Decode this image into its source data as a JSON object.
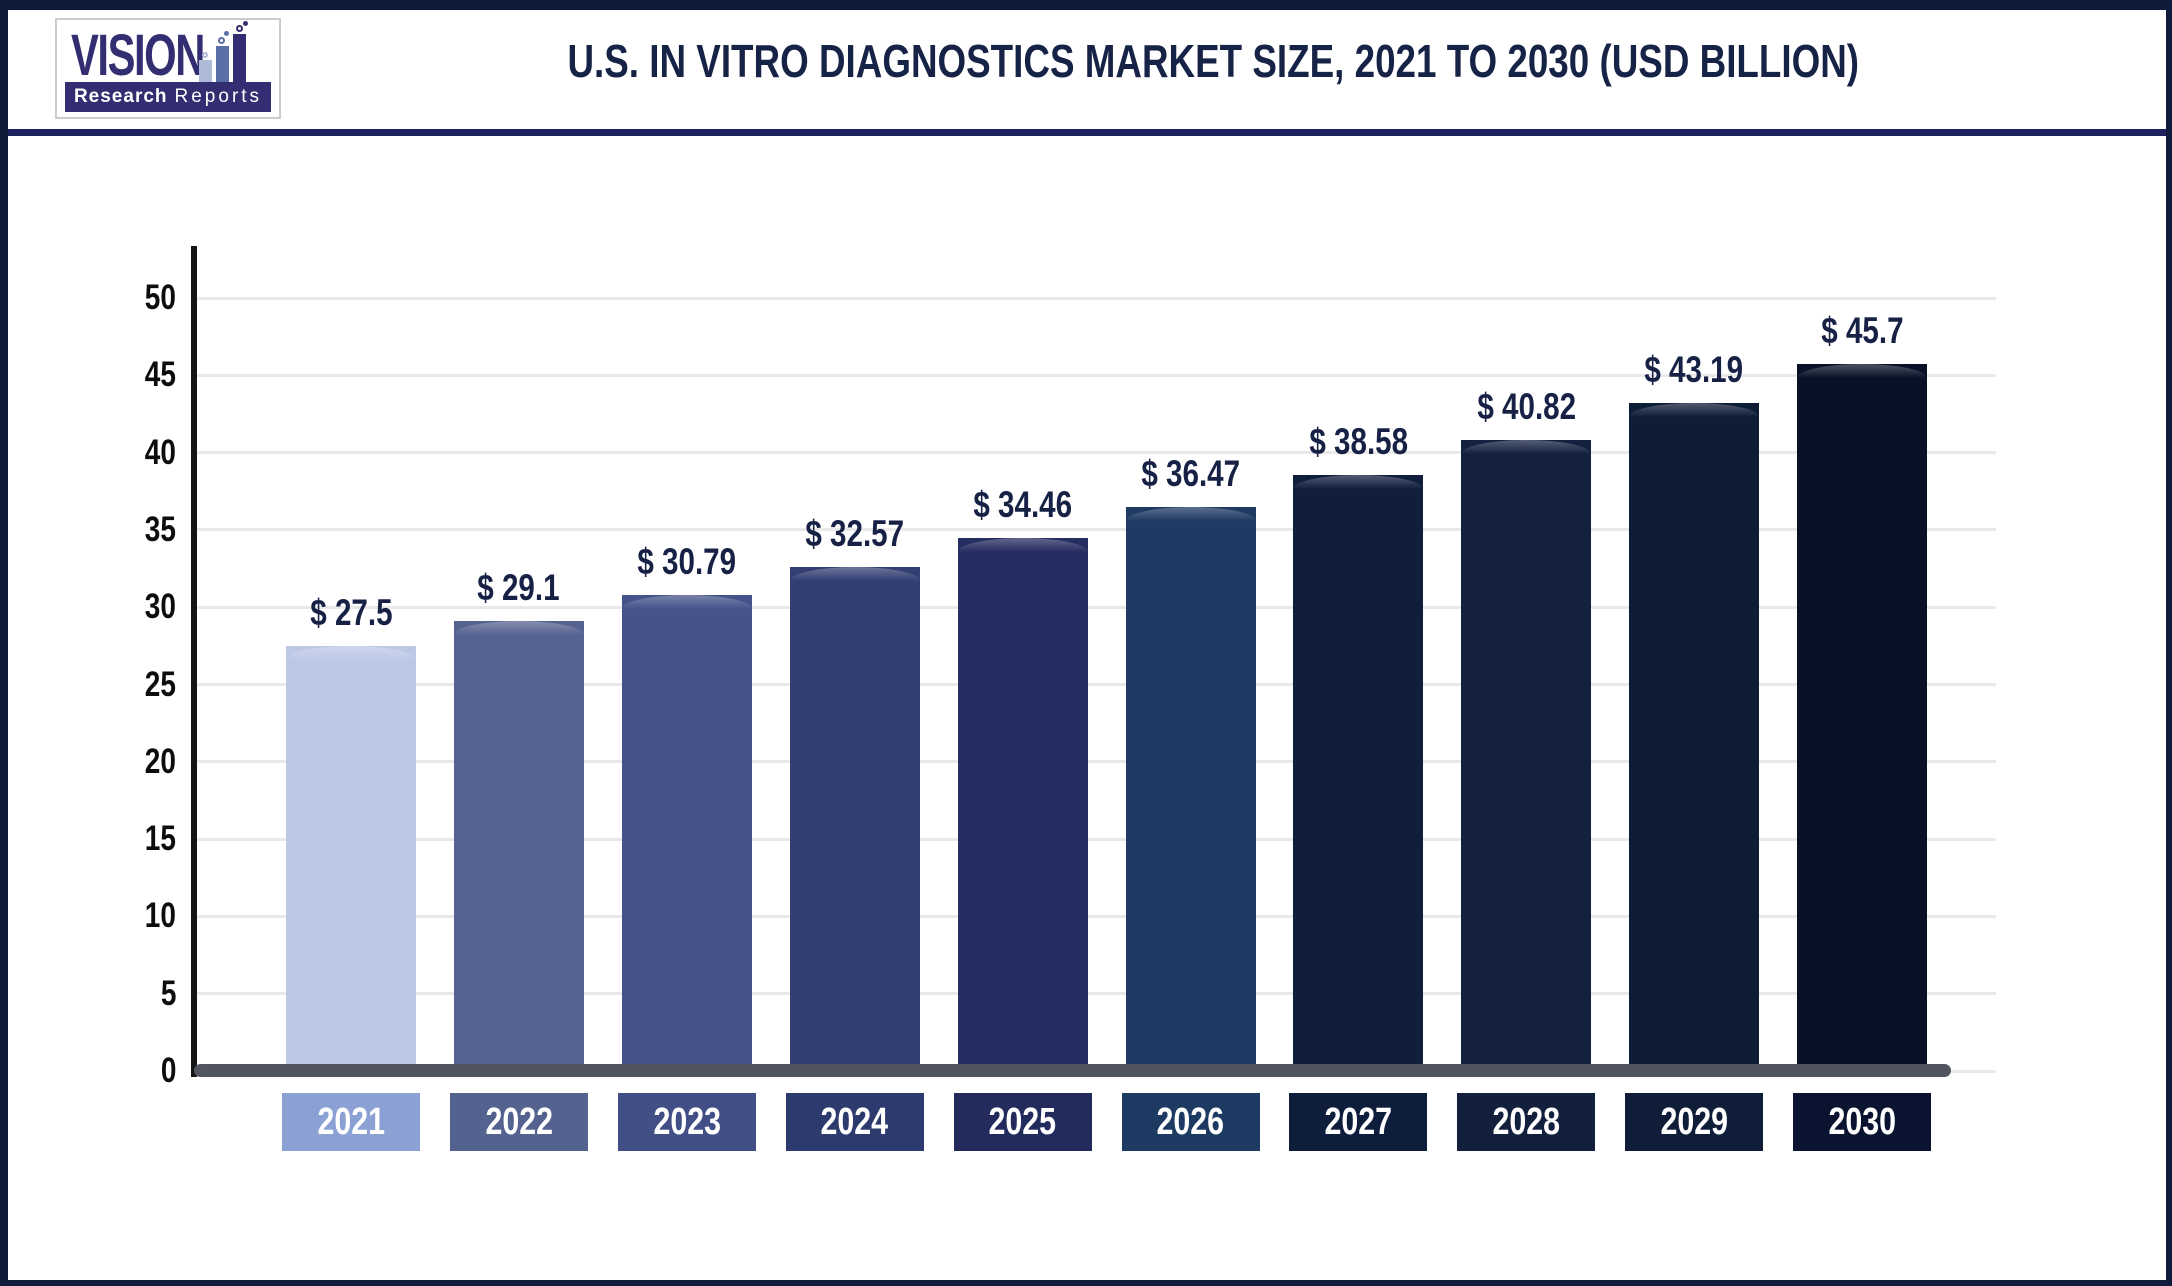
{
  "header": {
    "title": "U.S. IN VITRO DIAGNOSTICS MARKET SIZE, 2021 TO 2030 (USD BILLION)",
    "logo": {
      "brand": "VISION",
      "tagline_bold": "Research",
      "tagline_light": "Reports",
      "icon": "bar-chart-with-bubbles-icon"
    }
  },
  "chart_data": {
    "type": "bar",
    "title": "U.S. In Vitro Diagnostics Market Size, 2021 to 2030 (USD Billion)",
    "categories": [
      "2021",
      "2022",
      "2023",
      "2024",
      "2025",
      "2026",
      "2027",
      "2028",
      "2029",
      "2030"
    ],
    "values": [
      27.5,
      29.1,
      30.79,
      32.57,
      34.46,
      36.47,
      38.58,
      40.82,
      43.19,
      45.7
    ],
    "value_labels": [
      "$ 27.5",
      "$ 29.1",
      "$ 30.79",
      "$ 32.57",
      "$ 34.46",
      "$ 36.47",
      "$ 38.58",
      "$ 40.82",
      "$ 43.19",
      "$ 45.7"
    ],
    "xlabel": "",
    "ylabel": "",
    "ylim": [
      0,
      50
    ],
    "yticks": [
      "0",
      "5",
      "10",
      "15",
      "20",
      "25",
      "30",
      "35",
      "40",
      "45",
      "50"
    ],
    "grid": true,
    "legend_position": "none",
    "bar_colors": [
      "#bdc8e6",
      "#566390",
      "#46538a",
      "#333f72",
      "#262d61",
      "#1f3a63",
      "#101d3d",
      "#13203f",
      "#0e1c36",
      "#081127"
    ],
    "category_box_colors": [
      "#8ba0d3",
      "#54628f",
      "#414f86",
      "#2d3a6e",
      "#232a5c",
      "#1d3a63",
      "#0f1d3d",
      "#12203e",
      "#0f1d38",
      "#0a1430"
    ]
  },
  "colors": {
    "outer_border": "#101a3a",
    "header_divider": "#1c2160",
    "title_text": "#172346",
    "tick_text": "#0d0d0d",
    "axis_line": "#141414",
    "gridline": "#e9e9e9",
    "baseline_bar": "#51555f",
    "value_label_text": "#162145",
    "year_label_text": "#ffffff",
    "logo_navy": "#322e71",
    "logo_bar_light": "#aebad8",
    "logo_bar_mid": "#5a6fa8"
  }
}
